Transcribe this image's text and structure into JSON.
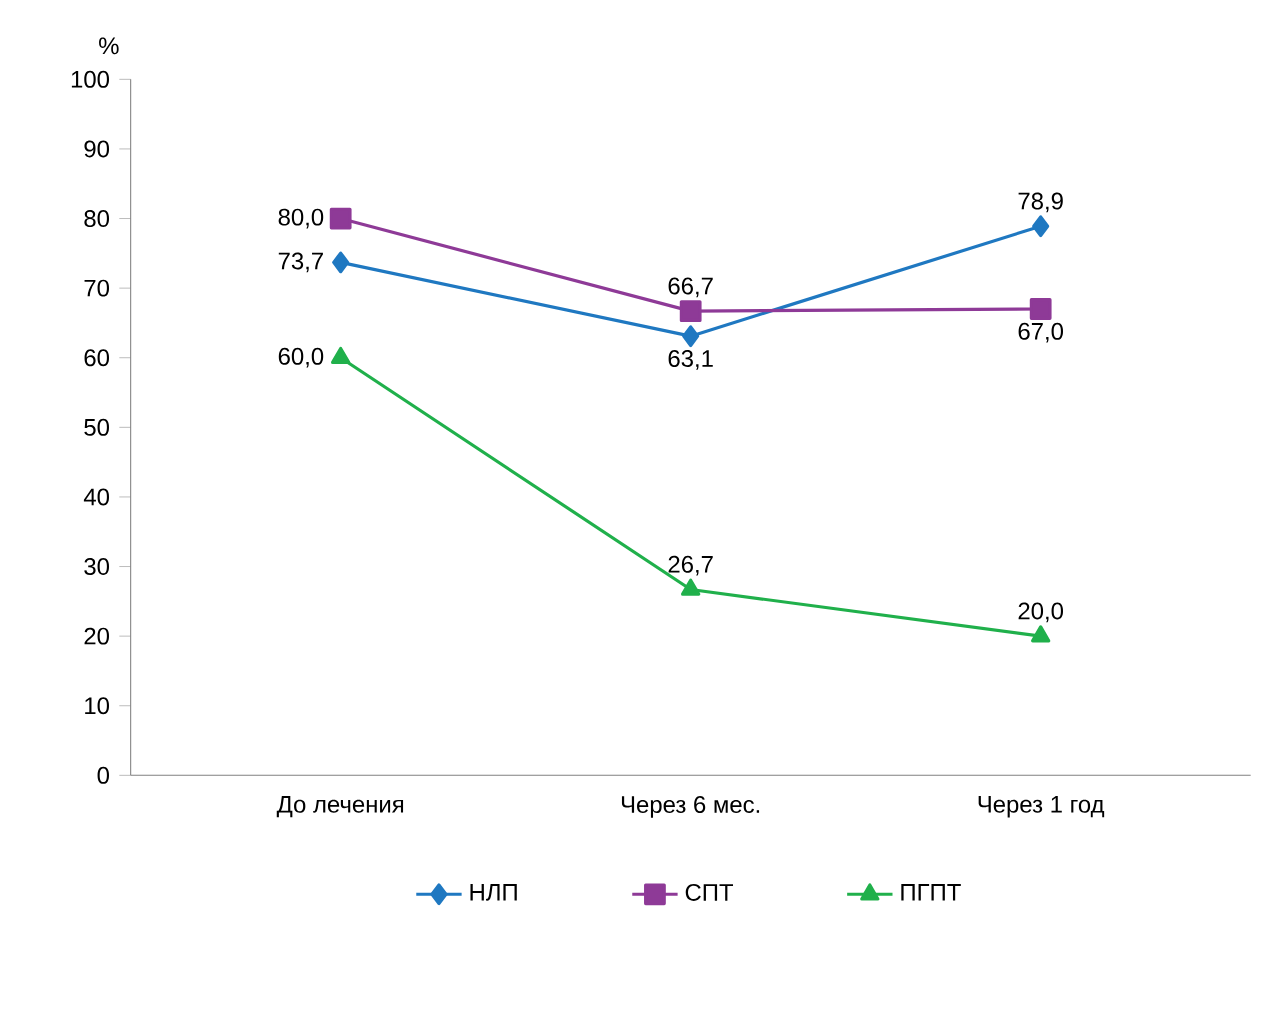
{
  "chart_data": {
    "type": "line",
    "ylabel": "%",
    "categories": [
      "До лечения",
      "Через 6 мес.",
      "Через 1 год"
    ],
    "series": [
      {
        "name": "НЛП",
        "color": "#1f78c1",
        "marker": "diamond",
        "values": [
          73.7,
          63.1,
          78.9
        ],
        "value_labels": [
          "73,7",
          "63,1",
          "78,9"
        ]
      },
      {
        "name": "СПТ",
        "color": "#8e3a97",
        "marker": "square",
        "values": [
          80.0,
          66.7,
          67.0
        ],
        "value_labels": [
          "80,0",
          "66,7",
          "67,0"
        ]
      },
      {
        "name": "ПГПТ",
        "color": "#20b04b",
        "marker": "triangle",
        "values": [
          60.0,
          26.7,
          20.0
        ],
        "value_labels": [
          "60,0",
          "26,7",
          "20,0"
        ]
      }
    ],
    "ylim": [
      0,
      100
    ],
    "yticks": [
      0,
      10,
      20,
      30,
      40,
      50,
      60,
      70,
      80,
      90,
      100
    ],
    "grid": false,
    "legend": "bottom"
  }
}
